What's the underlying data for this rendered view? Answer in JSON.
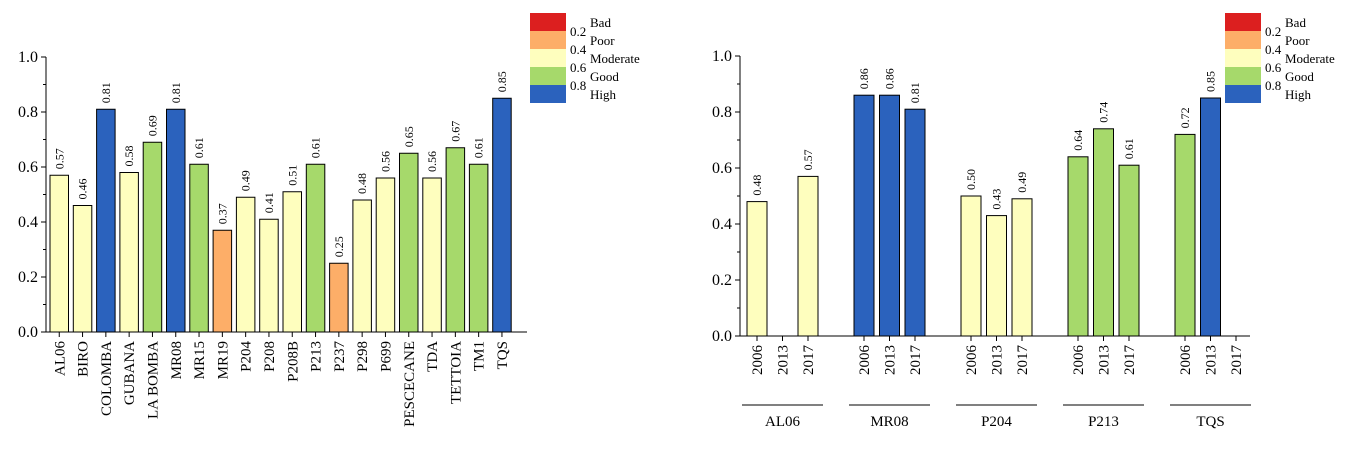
{
  "colors": {
    "bad": "#dc1f1f",
    "poor": "#fdae68",
    "moderate": "#fefebe",
    "good": "#a6d96b",
    "high": "#2b62bd"
  },
  "legend": {
    "entries": [
      {
        "key": "bad",
        "label": "Bad"
      },
      {
        "key": "poor",
        "label": "Poor"
      },
      {
        "key": "moderate",
        "label": "Moderate"
      },
      {
        "key": "good",
        "label": "Good"
      },
      {
        "key": "high",
        "label": "High"
      }
    ],
    "ticks": [
      "0.2",
      "0.4",
      "0.6",
      "0.8"
    ]
  },
  "chart_data": [
    {
      "type": "bar",
      "ylim": [
        0,
        1.0
      ],
      "yticks": [
        "0.0",
        "0.2",
        "0.4",
        "0.6",
        "0.8",
        "1.0"
      ],
      "categories": [
        "AL06",
        "BIRO",
        "COLOMBA",
        "GUBANA",
        "LA BOMBA",
        "MR08",
        "MR15",
        "MR19",
        "P204",
        "P208",
        "P208B",
        "P213",
        "P237",
        "P298",
        "P699",
        "PESCECANE",
        "TDA",
        "TETTOIA",
        "TM1",
        "TQS"
      ],
      "values": [
        0.57,
        0.46,
        0.81,
        0.58,
        0.69,
        0.81,
        0.61,
        0.37,
        0.49,
        0.41,
        0.51,
        0.61,
        0.25,
        0.48,
        0.56,
        0.65,
        0.56,
        0.67,
        0.61,
        0.85
      ],
      "labels": [
        "0.57",
        "0.46",
        "0.81",
        "0.58",
        "0.69",
        "0.81",
        "0.61",
        "0.37",
        "0.49",
        "0.41",
        "0.51",
        "0.61",
        "0.25",
        "0.48",
        "0.56",
        "0.65",
        "0.56",
        "0.67",
        "0.61",
        "0.85"
      ],
      "classes": [
        "moderate",
        "moderate",
        "high",
        "moderate",
        "good",
        "high",
        "good",
        "poor",
        "moderate",
        "moderate",
        "moderate",
        "good",
        "poor",
        "moderate",
        "moderate",
        "good",
        "moderate",
        "good",
        "good",
        "high"
      ],
      "legend_position": "top-right"
    },
    {
      "type": "bar",
      "ylim": [
        0,
        1.0
      ],
      "yticks": [
        "0.0",
        "0.2",
        "0.4",
        "0.6",
        "0.8",
        "1.0"
      ],
      "groups": [
        {
          "name": "AL06",
          "years": [
            "2006",
            "2013",
            "2017"
          ],
          "values": [
            0.48,
            null,
            0.57
          ],
          "labels": [
            "0.48",
            "",
            "0.57"
          ],
          "classes": [
            "moderate",
            "",
            "moderate"
          ]
        },
        {
          "name": "MR08",
          "years": [
            "2006",
            "2013",
            "2017"
          ],
          "values": [
            0.86,
            0.86,
            0.81
          ],
          "labels": [
            "0.86",
            "0.86",
            "0.81"
          ],
          "classes": [
            "high",
            "high",
            "high"
          ]
        },
        {
          "name": "P204",
          "years": [
            "2006",
            "2013",
            "2017"
          ],
          "values": [
            0.5,
            0.43,
            0.49
          ],
          "labels": [
            "0.50",
            "0.43",
            "0.49"
          ],
          "classes": [
            "moderate",
            "moderate",
            "moderate"
          ]
        },
        {
          "name": "P213",
          "years": [
            "2006",
            "2013",
            "2017"
          ],
          "values": [
            0.64,
            0.74,
            0.61
          ],
          "labels": [
            "0.64",
            "0.74",
            "0.61"
          ],
          "classes": [
            "good",
            "good",
            "good"
          ]
        },
        {
          "name": "TQS",
          "years": [
            "2006",
            "2013",
            "2017"
          ],
          "values": [
            0.72,
            0.85,
            null
          ],
          "labels": [
            "0.72",
            "0.85",
            ""
          ],
          "classes": [
            "good",
            "high",
            ""
          ]
        }
      ],
      "legend_position": "top-right"
    }
  ]
}
